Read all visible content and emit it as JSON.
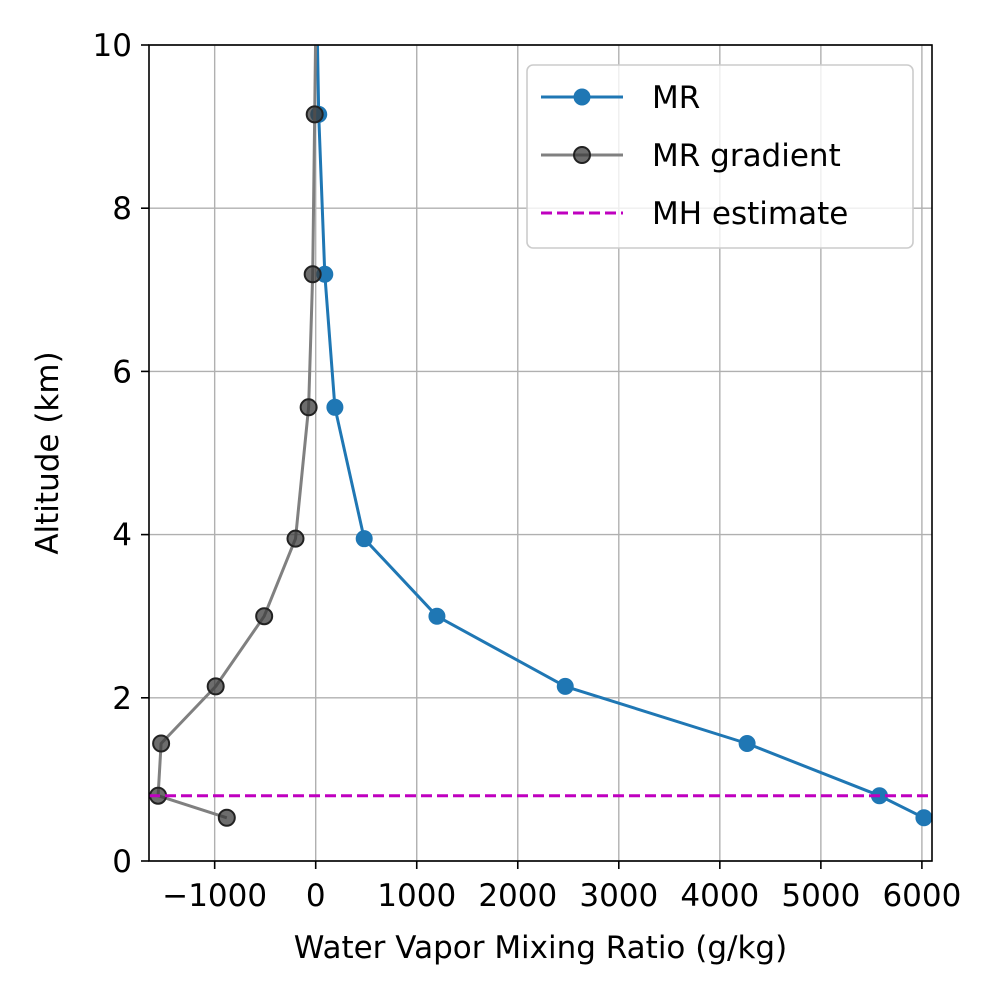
{
  "chart_data": {
    "type": "line",
    "title": "",
    "xlabel": "Water Vapor Mixing Ratio (g/kg)",
    "ylabel": "Altitude (km)",
    "xlim": [
      -1650,
      6100
    ],
    "ylim": [
      0,
      10
    ],
    "xticks": [
      -1000,
      0,
      1000,
      2000,
      3000,
      4000,
      5000,
      6000
    ],
    "xtick_labels": [
      "−1000",
      "0",
      "1000",
      "2000",
      "3000",
      "4000",
      "5000",
      "6000"
    ],
    "yticks": [
      0,
      2,
      4,
      6,
      8,
      10
    ],
    "ytick_labels": [
      "0",
      "2",
      "4",
      "6",
      "8",
      "10"
    ],
    "grid": true,
    "legend_position": "top-right",
    "series": [
      {
        "name": "MR",
        "color": "#1f77b4",
        "style": "solid",
        "marker": "circle",
        "points": [
          {
            "x": 6020,
            "y": 0.53
          },
          {
            "x": 5580,
            "y": 0.8
          },
          {
            "x": 4270,
            "y": 1.44
          },
          {
            "x": 2470,
            "y": 2.14
          },
          {
            "x": 1200,
            "y": 3.0
          },
          {
            "x": 480,
            "y": 3.95
          },
          {
            "x": 190,
            "y": 5.56
          },
          {
            "x": 90,
            "y": 7.19
          },
          {
            "x": 30,
            "y": 9.15
          },
          {
            "x": 15,
            "y": 10.2
          }
        ],
        "marker_count": 9
      },
      {
        "name": "MR gradient",
        "color": "#808080",
        "style": "solid",
        "marker": "circle",
        "points": [
          {
            "x": -880,
            "y": 0.53
          },
          {
            "x": -1560,
            "y": 0.8
          },
          {
            "x": -1530,
            "y": 1.44
          },
          {
            "x": -990,
            "y": 2.14
          },
          {
            "x": -510,
            "y": 3.0
          },
          {
            "x": -200,
            "y": 3.95
          },
          {
            "x": -70,
            "y": 5.56
          },
          {
            "x": -30,
            "y": 7.19
          },
          {
            "x": -10,
            "y": 9.15
          },
          {
            "x": 0,
            "y": 10.2
          }
        ],
        "marker_count": 9
      },
      {
        "name": "MH estimate",
        "color": "#bf00bf",
        "style": "dashed",
        "marker": "none",
        "y": 0.8
      }
    ]
  }
}
